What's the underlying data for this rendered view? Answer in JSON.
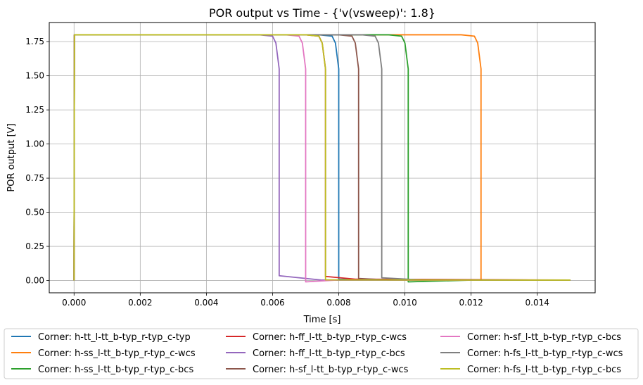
{
  "chart_data": {
    "type": "line",
    "title": "POR output vs Time - {'v(vsweep)': 1.8}",
    "xlabel": "Time [s]",
    "ylabel": "POR output [V]",
    "xlim": [
      -0.00075,
      0.01575
    ],
    "ylim": [
      -0.09,
      1.89
    ],
    "xticks": [
      0.0,
      0.002,
      0.004,
      0.006,
      0.008,
      0.01,
      0.012,
      0.014
    ],
    "xtick_labels": [
      "0.000",
      "0.002",
      "0.004",
      "0.006",
      "0.008",
      "0.010",
      "0.012",
      "0.014"
    ],
    "yticks": [
      0.0,
      0.25,
      0.5,
      0.75,
      1.0,
      1.25,
      1.5,
      1.75
    ],
    "ytick_labels": [
      "0.00",
      "0.25",
      "0.50",
      "0.75",
      "1.00",
      "1.25",
      "1.50",
      "1.75"
    ],
    "grid": true,
    "legend_position": "bottom-outside",
    "series": [
      {
        "name": "Corner: h-tt_l-tt_b-typ_r-typ_c-typ",
        "color": "#1f77b4",
        "x": [
          0,
          1e-05,
          0.0074,
          0.0078,
          0.0079,
          0.008,
          0.008,
          0.009,
          0.015
        ],
        "y": [
          0,
          1.8,
          1.8,
          1.79,
          1.74,
          1.55,
          0.01,
          0.004,
          0.003
        ]
      },
      {
        "name": "Corner: h-ss_l-tt_b-typ_r-typ_c-wcs",
        "color": "#ff7f0e",
        "x": [
          0,
          1e-05,
          0.0117,
          0.0121,
          0.0122,
          0.0123,
          0.0123,
          0.0135,
          0.015
        ],
        "y": [
          0,
          1.8,
          1.8,
          1.79,
          1.74,
          1.55,
          0.004,
          0.003,
          0.003
        ]
      },
      {
        "name": "Corner: h-ss_l-tt_b-typ_r-typ_c-bcs",
        "color": "#2ca02c",
        "x": [
          0,
          1e-05,
          0.0095,
          0.0099,
          0.01,
          0.0101,
          0.0101,
          0.012,
          0.015
        ],
        "y": [
          0,
          1.8,
          1.8,
          1.79,
          1.74,
          1.55,
          -0.01,
          0.003,
          0.003
        ]
      },
      {
        "name": "Corner: h-ff_l-tt_b-typ_r-typ_c-wcs",
        "color": "#d62728",
        "x": [
          0,
          1e-05,
          0.007,
          0.0074,
          0.0075,
          0.0076,
          0.0076,
          0.0085,
          0.015
        ],
        "y": [
          0,
          1.8,
          1.8,
          1.79,
          1.74,
          1.55,
          0.03,
          0.01,
          0.003
        ]
      },
      {
        "name": "Corner: h-ff_l-tt_b-typ_r-typ_c-bcs",
        "color": "#9467bd",
        "x": [
          0,
          1e-05,
          0.0056,
          0.006,
          0.0061,
          0.0062,
          0.0062,
          0.0075,
          0.015
        ],
        "y": [
          0,
          1.8,
          1.8,
          1.79,
          1.74,
          1.55,
          0.035,
          0.003,
          0.003
        ]
      },
      {
        "name": "Corner: h-sf_l-tt_b-typ_r-typ_c-wcs",
        "color": "#8c564b",
        "x": [
          0,
          1e-05,
          0.008,
          0.0084,
          0.0085,
          0.0086,
          0.0086,
          0.0095,
          0.015
        ],
        "y": [
          0,
          1.8,
          1.8,
          1.79,
          1.74,
          1.55,
          0.015,
          0.004,
          0.003
        ]
      },
      {
        "name": "Corner: h-sf_l-tt_b-typ_r-typ_c-bcs",
        "color": "#e377c2",
        "x": [
          0,
          1e-05,
          0.0064,
          0.0068,
          0.0069,
          0.007,
          0.007,
          0.008,
          0.015
        ],
        "y": [
          0,
          1.8,
          1.8,
          1.79,
          1.74,
          1.55,
          -0.01,
          0.004,
          0.003
        ]
      },
      {
        "name": "Corner: h-fs_l-tt_b-typ_r-typ_c-wcs",
        "color": "#7f7f7f",
        "x": [
          0,
          1e-05,
          0.0087,
          0.0091,
          0.0092,
          0.0093,
          0.0093,
          0.0105,
          0.015
        ],
        "y": [
          0,
          1.8,
          1.8,
          1.79,
          1.74,
          1.55,
          0.02,
          0.004,
          0.003
        ]
      },
      {
        "name": "Corner: h-fs_l-tt_b-typ_r-typ_c-bcs",
        "color": "#bcbd22",
        "x": [
          0,
          1e-05,
          0.007,
          0.0074,
          0.0075,
          0.0076,
          0.0076,
          0.0085,
          0.015
        ],
        "y": [
          0,
          1.8,
          1.8,
          1.79,
          1.74,
          1.55,
          0.005,
          0.004,
          0.003
        ]
      }
    ]
  }
}
